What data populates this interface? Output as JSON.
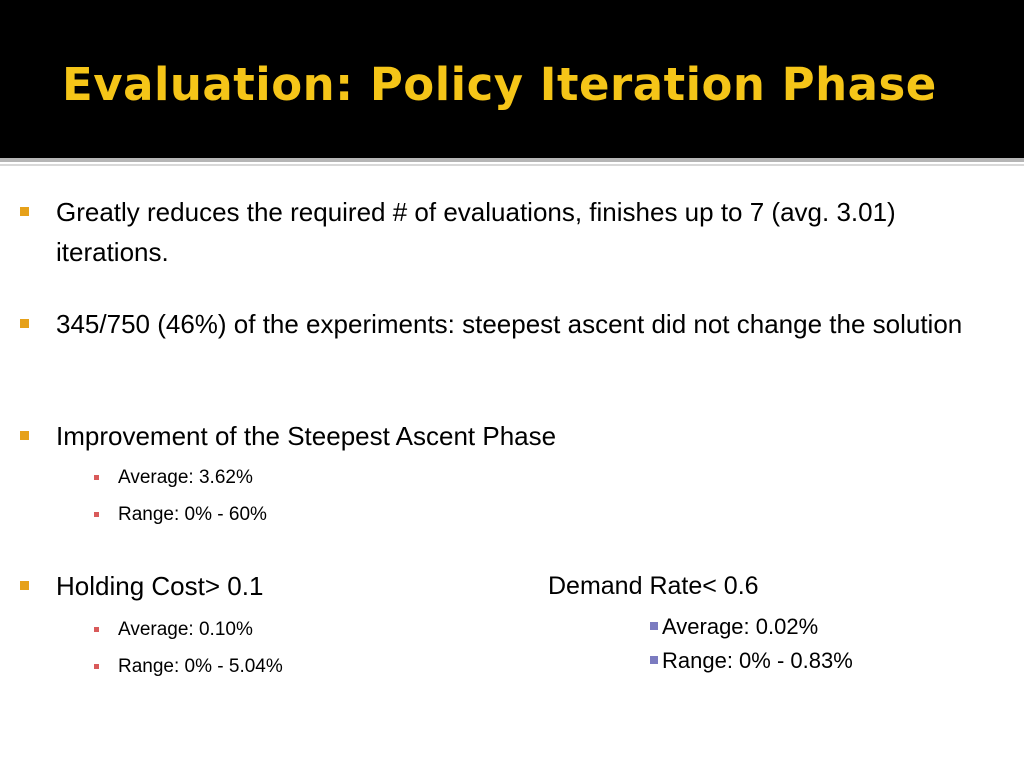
{
  "slide": {
    "title": "Evaluation: Policy Iteration Phase",
    "bullets": [
      {
        "text": "Greatly reduces the required # of evaluations, finishes up to 7 (avg. 3.01) iterations."
      },
      {
        "text": "345/750 (46%) of the experiments: steepest ascent did not change the solution"
      },
      {
        "text": "Improvement of the Steepest Ascent Phase",
        "subs": [
          "Average: 3.62%",
          "Range: 0% - 60%"
        ]
      },
      {
        "text": "Holding Cost> 0.1",
        "subs": [
          "Average: 0.10%",
          "Range: 0% - 5.04%"
        ]
      }
    ],
    "demand": {
      "heading": "Demand Rate< 0.6",
      "subs": [
        "Average: 0.02%",
        "Range: 0% - 0.83%"
      ]
    }
  },
  "colors": {
    "title": "#f5c518",
    "bullet_marker": "#e6a11a",
    "sub_marker": "#d95a5a",
    "demand_marker": "#7b7bc0"
  }
}
